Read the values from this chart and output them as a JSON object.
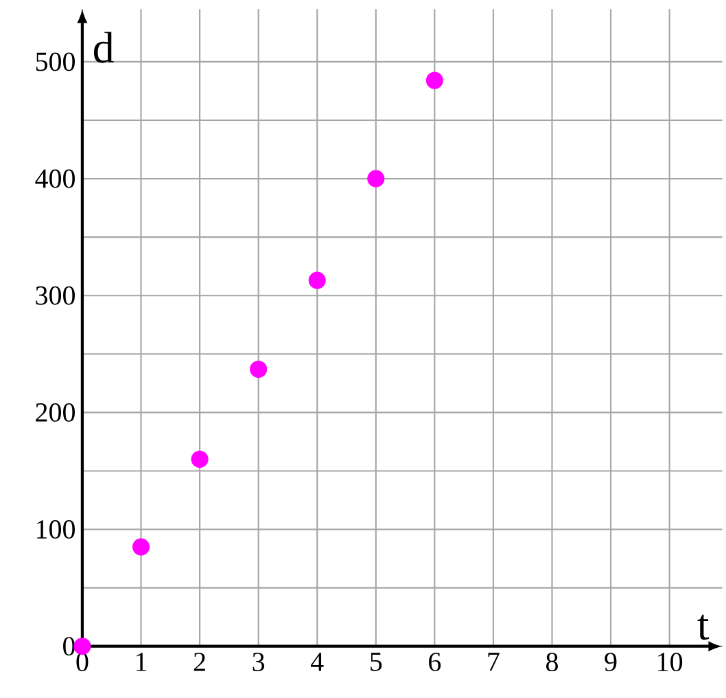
{
  "chart_data": {
    "type": "scatter",
    "xlabel": "t",
    "ylabel": "d",
    "x": [
      0,
      1,
      2,
      3,
      4,
      5,
      6
    ],
    "values": [
      0,
      85,
      160,
      237,
      313,
      400,
      484
    ],
    "color": "#ff00ff",
    "grid": true,
    "xlim": [
      0,
      10.9
    ],
    "ylim": [
      0,
      545
    ],
    "xticks": [
      0,
      1,
      2,
      3,
      4,
      5,
      6,
      7,
      8,
      9,
      10
    ],
    "yticks": [
      0,
      {
        "value": 50,
        "label": null
      },
      100,
      {
        "value": 150,
        "label": null
      },
      200,
      {
        "value": 250,
        "label": null
      },
      300,
      {
        "value": 350,
        "label": null
      },
      400,
      {
        "value": 450,
        "label": null
      },
      500
    ]
  }
}
